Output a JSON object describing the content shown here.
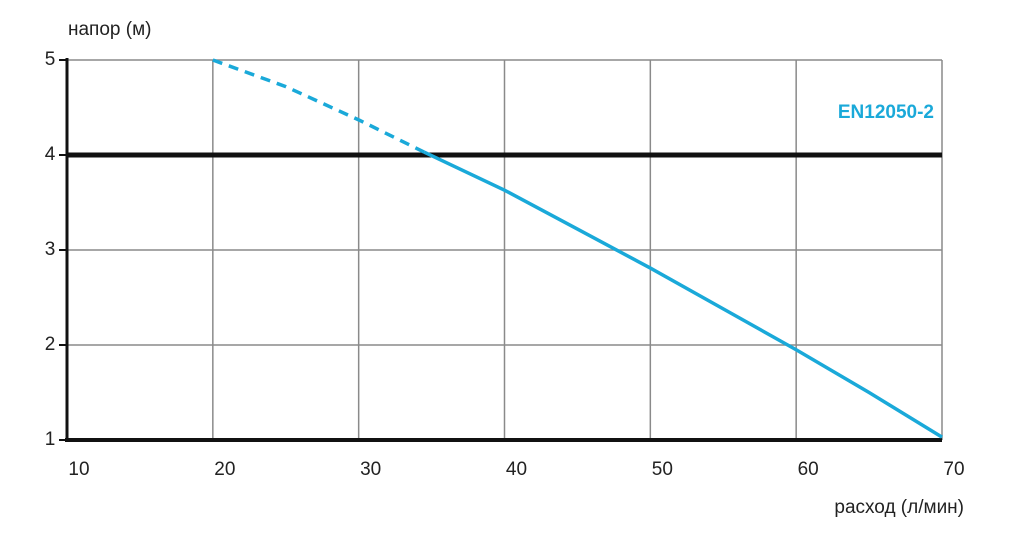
{
  "chart_data": {
    "type": "line",
    "x_label": "расход (л/мин)",
    "y_label": "напор (м)",
    "xlim": [
      10,
      70
    ],
    "xticks": [
      10,
      20,
      30,
      40,
      50,
      60,
      70
    ],
    "ylim": [
      1,
      5
    ],
    "yticks": [
      1,
      2,
      3,
      4,
      5
    ],
    "grid": true,
    "reference_line": 4,
    "legend": "right",
    "series": [
      {
        "name": "EN12050-2",
        "color": "#1aa9d9",
        "line_style": "solid",
        "x": [
          34.5,
          40,
          45,
          50,
          55,
          60,
          65,
          70
        ],
        "values": [
          4.03,
          3.63,
          3.22,
          2.81,
          2.38,
          1.95,
          1.5,
          1.03
        ]
      },
      {
        "color": "#1aa9d9",
        "line_style": "dashed",
        "x": [
          20,
          25,
          30,
          34.5
        ],
        "values": [
          5,
          4.72,
          4.37,
          4.03
        ]
      }
    ]
  }
}
